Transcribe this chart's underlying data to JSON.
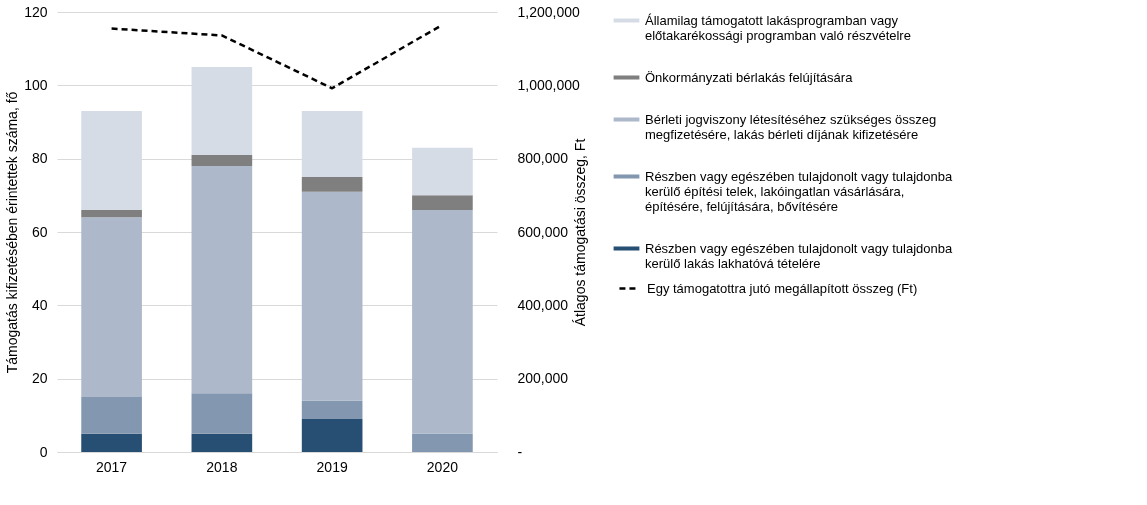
{
  "chart_data": {
    "type": "bar",
    "stacked": true,
    "categories": [
      "2017",
      "2018",
      "2019",
      "2020"
    ],
    "ylabel": "Támogatás kifizetésében érintettek száma, fő",
    "y2label": "Átlagos támogatási összeg, Ft",
    "ylim": [
      0,
      120
    ],
    "yticks": [
      0,
      20,
      40,
      60,
      80,
      100,
      120
    ],
    "y2lim": [
      0,
      1200000
    ],
    "y2ticks": [
      {
        "value": 0,
        "label": "-"
      },
      {
        "value": 200000,
        "label": "200,000"
      },
      {
        "value": 400000,
        "label": "400,000"
      },
      {
        "value": 600000,
        "label": "600,000"
      },
      {
        "value": 800000,
        "label": "800,000"
      },
      {
        "value": 1000000,
        "label": "1,000,000"
      },
      {
        "value": 1200000,
        "label": "1,200,000"
      }
    ],
    "grid": "y",
    "legend": "right",
    "series": [
      {
        "name": "Részben vagy egészében tulajdonolt vagy tulajdonba kerülő lakás lakhatóvá tételére",
        "color": "#264f73",
        "values": [
          5,
          5,
          9,
          0
        ]
      },
      {
        "name": "Részben vagy egészében tulajdonolt vagy tulajdonba kerülő építési telek, lakóingatlan vásárlására, építésére, felújítására, bővítésére",
        "color": "#8497b0",
        "values": [
          10,
          11,
          5,
          5
        ]
      },
      {
        "name": "Bérleti jogviszony létesítéséhez szükséges összeg megfizetésére, lakás bérleti díjának kifizetésére",
        "color": "#adb9ca",
        "values": [
          49,
          62,
          57,
          61
        ]
      },
      {
        "name": "Önkormányzati bérlakás felújítására",
        "color": "#7f7f7f",
        "values": [
          2,
          3,
          4,
          4
        ]
      },
      {
        "name": "Államilag támogatott lakásprogramban vagy előtakarékossági programban való részvételre",
        "color": "#d6dce5",
        "values": [
          27,
          24,
          18,
          13
        ]
      },
      {
        "name": "Egy támogatottra jutó megállapított összeg (Ft)",
        "type": "line",
        "axis": "y2",
        "line_style": "dashed",
        "color": "#000000",
        "values": [
          1155000,
          1136000,
          992000,
          1165000
        ]
      }
    ]
  }
}
